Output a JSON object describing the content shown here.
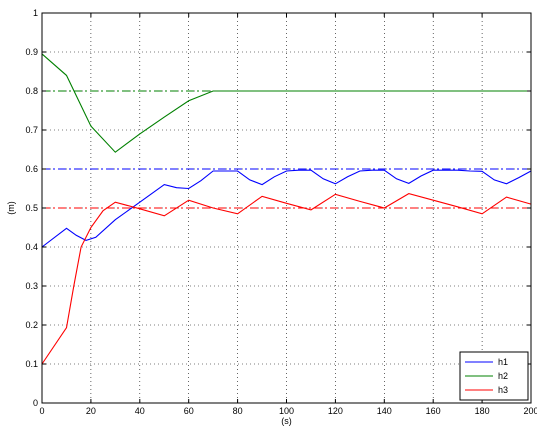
{
  "chart_data": {
    "type": "line",
    "title": "",
    "xlabel": "(s)",
    "ylabel": "(m)",
    "xlim": [
      0,
      200
    ],
    "ylim": [
      0,
      1
    ],
    "x_ticks": [
      0,
      20,
      40,
      60,
      80,
      100,
      120,
      140,
      160,
      180,
      200
    ],
    "y_ticks": [
      0,
      0.1,
      0.2,
      0.3,
      0.4,
      0.5,
      0.6,
      0.7,
      0.8,
      0.9,
      1
    ],
    "grid": true,
    "legend_position": "bottom-right",
    "series": [
      {
        "name": "h1",
        "color": "#0000ff",
        "x": [
          0,
          10,
          14,
          18,
          22,
          30,
          40,
          50,
          55,
          60,
          65,
          70,
          78,
          80,
          85,
          90,
          95,
          100,
          105,
          110,
          115,
          120,
          125,
          130,
          135,
          140,
          145,
          150,
          155,
          160,
          165,
          170,
          175,
          180,
          185,
          190,
          195,
          200
        ],
        "y": [
          0.4,
          0.448,
          0.43,
          0.417,
          0.425,
          0.47,
          0.515,
          0.56,
          0.552,
          0.55,
          0.57,
          0.595,
          0.595,
          0.595,
          0.572,
          0.56,
          0.58,
          0.595,
          0.597,
          0.597,
          0.575,
          0.562,
          0.58,
          0.595,
          0.597,
          0.597,
          0.575,
          0.563,
          0.582,
          0.597,
          0.597,
          0.597,
          0.595,
          0.594,
          0.572,
          0.562,
          0.578,
          0.595
        ]
      },
      {
        "name": "h2",
        "color": "#008000",
        "x": [
          0,
          10,
          20,
          30,
          40,
          50,
          60,
          70,
          80,
          90,
          100,
          110,
          120,
          130,
          140,
          150,
          160,
          170,
          180,
          190,
          200
        ],
        "y": [
          0.895,
          0.84,
          0.71,
          0.643,
          0.69,
          0.733,
          0.775,
          0.8,
          0.8,
          0.8,
          0.8,
          0.8,
          0.8,
          0.8,
          0.8,
          0.8,
          0.8,
          0.8,
          0.8,
          0.8,
          0.8
        ]
      },
      {
        "name": "h3",
        "color": "#ff0000",
        "x": [
          0,
          10,
          13,
          16,
          20,
          25,
          30,
          40,
          50,
          60,
          70,
          80,
          90,
          100,
          110,
          120,
          130,
          140,
          150,
          160,
          170,
          180,
          190,
          200
        ],
        "y": [
          0.1,
          0.193,
          0.3,
          0.4,
          0.45,
          0.493,
          0.515,
          0.498,
          0.48,
          0.52,
          0.5,
          0.485,
          0.53,
          0.512,
          0.495,
          0.535,
          0.517,
          0.5,
          0.537,
          0.52,
          0.503,
          0.485,
          0.528,
          0.51
        ]
      }
    ],
    "reference_lines": [
      {
        "y": 0.6,
        "color": "#0000ff",
        "style": "dash-dot"
      },
      {
        "y": 0.8,
        "color": "#008000",
        "style": "dash-dot"
      },
      {
        "y": 0.5,
        "color": "#ff0000",
        "style": "dash-dot"
      }
    ]
  }
}
